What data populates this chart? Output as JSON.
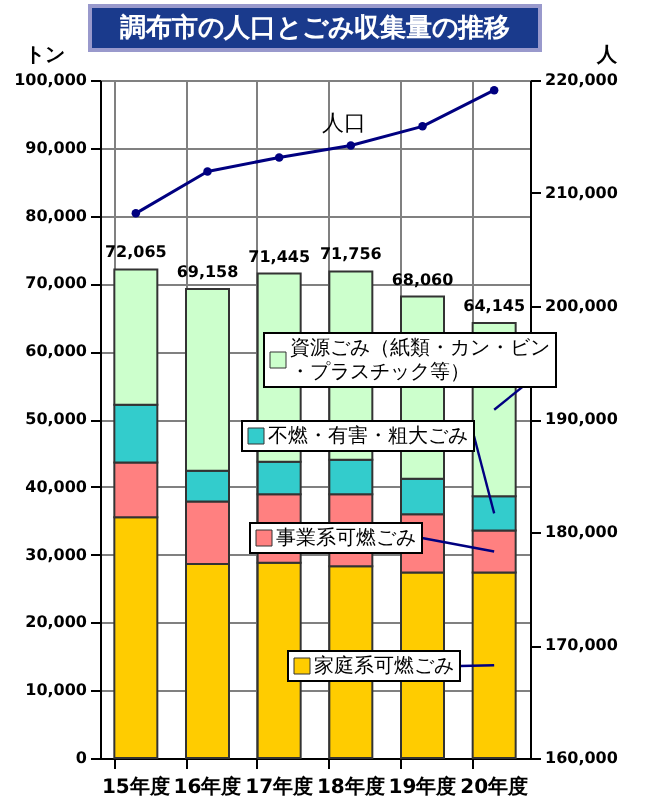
{
  "chart_data": {
    "type": "bar",
    "title": "調布市の人口とごみ収集量の推移",
    "ylabel": "トン",
    "y2label": "人",
    "categories": [
      "15年度",
      "16年度",
      "17年度",
      "18年度",
      "19年度",
      "20年度"
    ],
    "stacked": true,
    "series": [
      {
        "name": "家庭系可燃ごみ",
        "color": "#ffcc00",
        "values": [
          35500,
          28600,
          28800,
          28300,
          27350,
          27350
        ]
      },
      {
        "name": "事業系可燃ごみ",
        "color": "#ff8080",
        "values": [
          8100,
          9250,
          10100,
          10600,
          8600,
          6200
        ]
      },
      {
        "name": "不燃・有害・粗大ごみ",
        "color": "#33cccc",
        "values": [
          8500,
          4500,
          4800,
          5100,
          5250,
          5050
        ]
      },
      {
        "name": "資源ごみ（紙類・カン・ビン・プラスチック等）",
        "color": "#ccffcc",
        "values": [
          19965,
          26808,
          27745,
          27756,
          26860,
          25545
        ]
      },
      {
        "name": "人口",
        "type": "line",
        "axis": "y2",
        "color": "#000080",
        "marker": "circle",
        "values": [
          208200,
          211900,
          213150,
          214200,
          215900,
          219100
        ]
      }
    ],
    "totals": [
      "72,065",
      "69,158",
      "71,445",
      "71,756",
      "68,060",
      "64,145"
    ],
    "ylim": [
      0,
      100000
    ],
    "yticks": [
      0,
      {
        "value": 10000,
        "label": "10,000"
      },
      {
        "value": 20000,
        "label": "20,000"
      },
      {
        "value": 30000,
        "label": "30,000"
      },
      {
        "value": 40000,
        "label": "40,000"
      },
      {
        "value": 50000,
        "label": "50,000"
      },
      {
        "value": 60000,
        "label": "60,000"
      },
      {
        "value": 70000,
        "label": "70,000"
      },
      {
        "value": 80000,
        "label": "80,000"
      },
      {
        "value": 90000,
        "label": "90,000"
      },
      {
        "value": 100000,
        "label": "100,000"
      }
    ],
    "y2lim": [
      160000,
      220000
    ],
    "y2ticks": [
      {
        "value": 160000,
        "label": "160,000"
      },
      {
        "value": 170000,
        "label": "170,000"
      },
      {
        "value": 180000,
        "label": "180,000"
      },
      {
        "value": 190000,
        "label": "190,000"
      },
      {
        "value": 200000,
        "label": "200,000"
      },
      {
        "value": 210000,
        "label": "210,000"
      },
      {
        "value": 220000,
        "label": "220,000"
      }
    ],
    "grid": true,
    "legend": "bottom right"
  }
}
